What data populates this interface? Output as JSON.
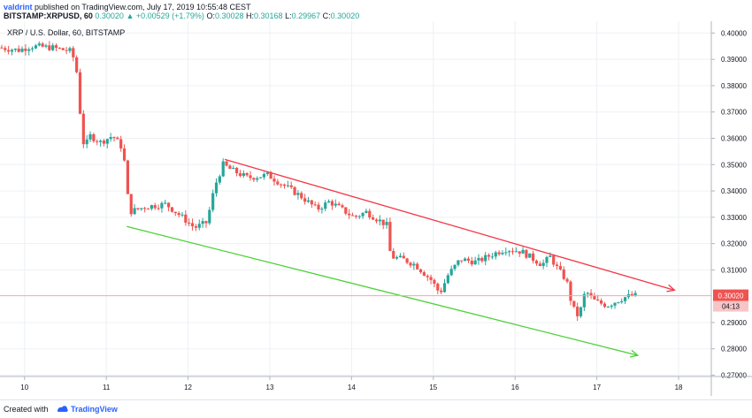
{
  "header": {
    "author": "valdrint",
    "published": "published on TradingView.com, July 17, 2019 10:55:48 CEST",
    "symbol": "BITSTAMP:XRPUSD, 60",
    "last": "0.30020",
    "change": "+0.00529 (+1.79%)",
    "o_label": "O:",
    "o_value": "0.30028",
    "h_label": "H:",
    "h_value": "0.30168",
    "l_label": "L:",
    "l_value": "0.29967",
    "c_label": "C:",
    "c_value": "0.30020"
  },
  "footer": {
    "created_with": "Created with",
    "brand": "TradingView"
  },
  "colors": {
    "up": "#26a69a",
    "down": "#ef5350",
    "resistance": "#f23645",
    "support": "#4cd137",
    "price_line": "#f4a6a8",
    "grid": "#edf0f5"
  },
  "chart_data": {
    "type": "candlestick",
    "title": "XRP / U.S. Dollar, 60, BITSTAMP",
    "x_ticks": [
      "10",
      "11",
      "12",
      "13",
      "14",
      "15",
      "16",
      "17",
      "18"
    ],
    "x_range": [
      9.7,
      18.4
    ],
    "y_ticks": [
      "0.40000",
      "0.39000",
      "0.38000",
      "0.37000",
      "0.36000",
      "0.35000",
      "0.34000",
      "0.33000",
      "0.32000",
      "0.31000",
      "0.29000",
      "0.28000",
      "0.27000"
    ],
    "y_range": [
      0.2695,
      0.4045
    ],
    "last_price": 0.3002,
    "last_price_label": "0.30020",
    "countdown": "04:13",
    "trendlines": [
      {
        "name": "resistance",
        "from": [
          12.45,
          0.352
        ],
        "to": [
          17.95,
          0.3023
        ]
      },
      {
        "name": "support",
        "from": [
          11.25,
          0.3265
        ],
        "to": [
          17.5,
          0.2775
        ]
      }
    ],
    "ohlc_keypoints": [
      [
        9.7,
        0.3945
      ],
      [
        9.95,
        0.3935
      ],
      [
        10.1,
        0.395
      ],
      [
        10.35,
        0.3945
      ],
      [
        10.6,
        0.393
      ],
      [
        10.66,
        0.385
      ],
      [
        10.7,
        0.37
      ],
      [
        10.75,
        0.356
      ],
      [
        10.82,
        0.361
      ],
      [
        10.95,
        0.3585
      ],
      [
        11.1,
        0.361
      ],
      [
        11.2,
        0.357
      ],
      [
        11.25,
        0.35
      ],
      [
        11.3,
        0.332
      ],
      [
        11.5,
        0.334
      ],
      [
        11.75,
        0.335
      ],
      [
        11.95,
        0.33
      ],
      [
        12.1,
        0.326
      ],
      [
        12.25,
        0.328
      ],
      [
        12.35,
        0.342
      ],
      [
        12.45,
        0.35
      ],
      [
        12.55,
        0.348
      ],
      [
        12.75,
        0.345
      ],
      [
        13.0,
        0.346
      ],
      [
        13.2,
        0.342
      ],
      [
        13.4,
        0.338
      ],
      [
        13.6,
        0.333
      ],
      [
        13.75,
        0.336
      ],
      [
        13.95,
        0.332
      ],
      [
        14.05,
        0.33
      ],
      [
        14.2,
        0.332
      ],
      [
        14.35,
        0.329
      ],
      [
        14.45,
        0.327
      ],
      [
        14.5,
        0.315
      ],
      [
        14.65,
        0.314
      ],
      [
        14.8,
        0.312
      ],
      [
        15.0,
        0.306
      ],
      [
        15.1,
        0.301
      ],
      [
        15.2,
        0.308
      ],
      [
        15.35,
        0.314
      ],
      [
        15.55,
        0.313
      ],
      [
        15.75,
        0.316
      ],
      [
        15.9,
        0.318
      ],
      [
        16.1,
        0.317
      ],
      [
        16.2,
        0.315
      ],
      [
        16.35,
        0.312
      ],
      [
        16.45,
        0.315
      ],
      [
        16.55,
        0.31
      ],
      [
        16.65,
        0.306
      ],
      [
        16.72,
        0.296
      ],
      [
        16.8,
        0.292
      ],
      [
        16.88,
        0.302
      ],
      [
        17.0,
        0.298
      ],
      [
        17.15,
        0.2965
      ],
      [
        17.35,
        0.2995
      ],
      [
        17.45,
        0.3002
      ]
    ]
  }
}
